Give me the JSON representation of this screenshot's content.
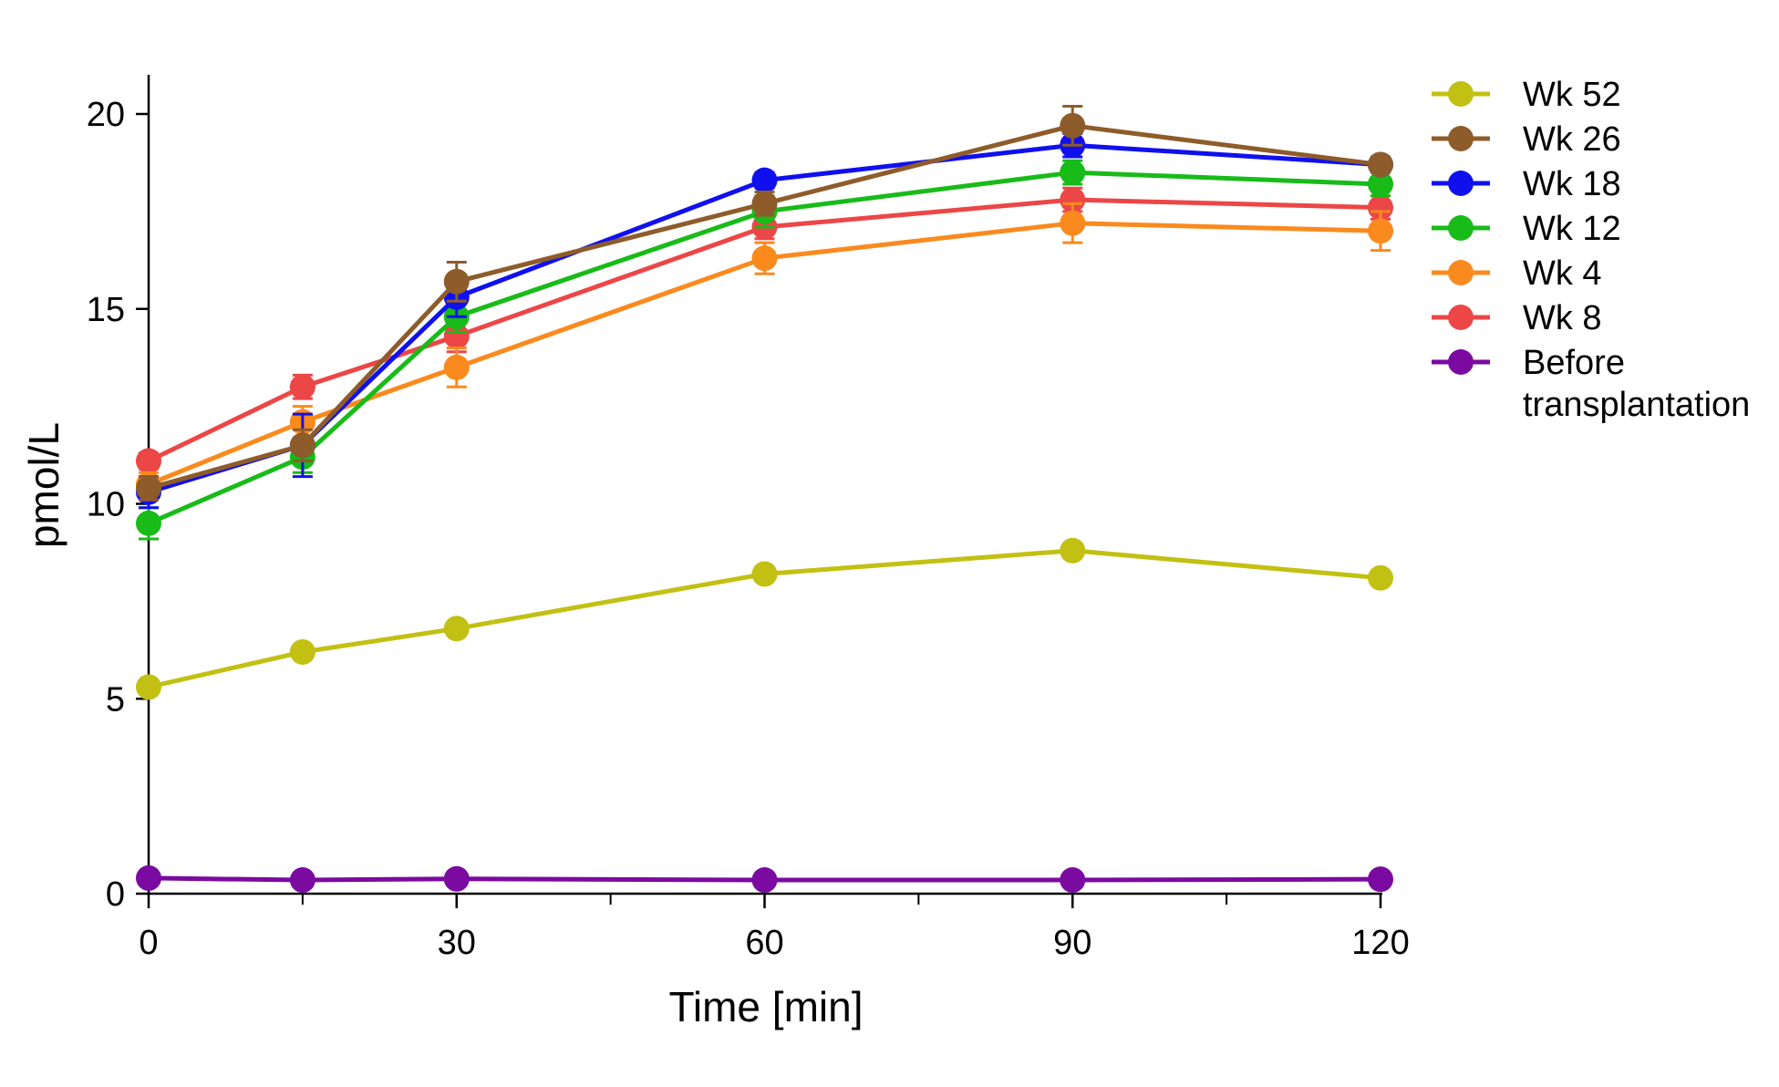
{
  "chart_data": {
    "type": "line",
    "title": "",
    "xlabel": "Time [min]",
    "ylabel": "pmol/L",
    "xlim": [
      0,
      120
    ],
    "ylim": [
      0,
      20
    ],
    "xticks": [
      0,
      30,
      60,
      90,
      120
    ],
    "xtick_labels": [
      "0",
      "30",
      "60",
      "90",
      "120"
    ],
    "x_minor_ticks": [
      15,
      45,
      75,
      105
    ],
    "yticks": [
      0,
      5,
      10,
      15,
      20
    ],
    "ytick_labels": [
      "0",
      "5",
      "10",
      "15",
      "20"
    ],
    "x": [
      0,
      15,
      30,
      60,
      90,
      120
    ],
    "legend_position": "right",
    "series": [
      {
        "name": "Wk 52",
        "color": "#c2c012",
        "values": [
          5.3,
          6.2,
          6.8,
          8.2,
          8.8,
          8.1
        ],
        "errors": [
          0,
          0,
          0,
          0,
          0,
          0
        ]
      },
      {
        "name": "Wk 26",
        "color": "#8e5c2a",
        "values": [
          10.4,
          11.5,
          15.7,
          17.7,
          19.7,
          18.7
        ],
        "errors": [
          0.3,
          0.4,
          0.5,
          0.3,
          0.5,
          0.2
        ]
      },
      {
        "name": "Wk 18",
        "color": "#1010ee",
        "values": [
          10.3,
          11.5,
          15.3,
          18.3,
          19.2,
          18.7
        ],
        "errors": [
          0.4,
          0.8,
          0.5,
          0.2,
          0.3,
          0.2
        ]
      },
      {
        "name": "Wk 12",
        "color": "#18bb18",
        "values": [
          9.5,
          11.2,
          14.8,
          17.5,
          18.5,
          18.2
        ],
        "errors": [
          0.4,
          0.4,
          0.4,
          0.4,
          0.3,
          0.3
        ]
      },
      {
        "name": "Wk 4",
        "color": "#fa8a1e",
        "values": [
          10.5,
          12.1,
          13.5,
          16.3,
          17.2,
          17.0
        ],
        "errors": [
          0.3,
          0.4,
          0.5,
          0.4,
          0.5,
          0.5
        ]
      },
      {
        "name": "Wk 8",
        "color": "#ec4646",
        "values": [
          11.1,
          13.0,
          14.3,
          17.1,
          17.8,
          17.6
        ],
        "errors": [
          0.2,
          0.3,
          0.4,
          0.3,
          0.3,
          0.3
        ]
      },
      {
        "name": "Before\ntransplantation",
        "color": "#7a0aa0",
        "values": [
          0.4,
          0.35,
          0.38,
          0.35,
          0.35,
          0.37
        ],
        "errors": [
          0,
          0,
          0,
          0,
          0,
          0
        ]
      }
    ],
    "legend_order": [
      "Wk 52",
      "Wk 26",
      "Wk 18",
      "Wk 12",
      "Wk 4",
      "Wk 8",
      "Before\ntransplantation"
    ]
  }
}
